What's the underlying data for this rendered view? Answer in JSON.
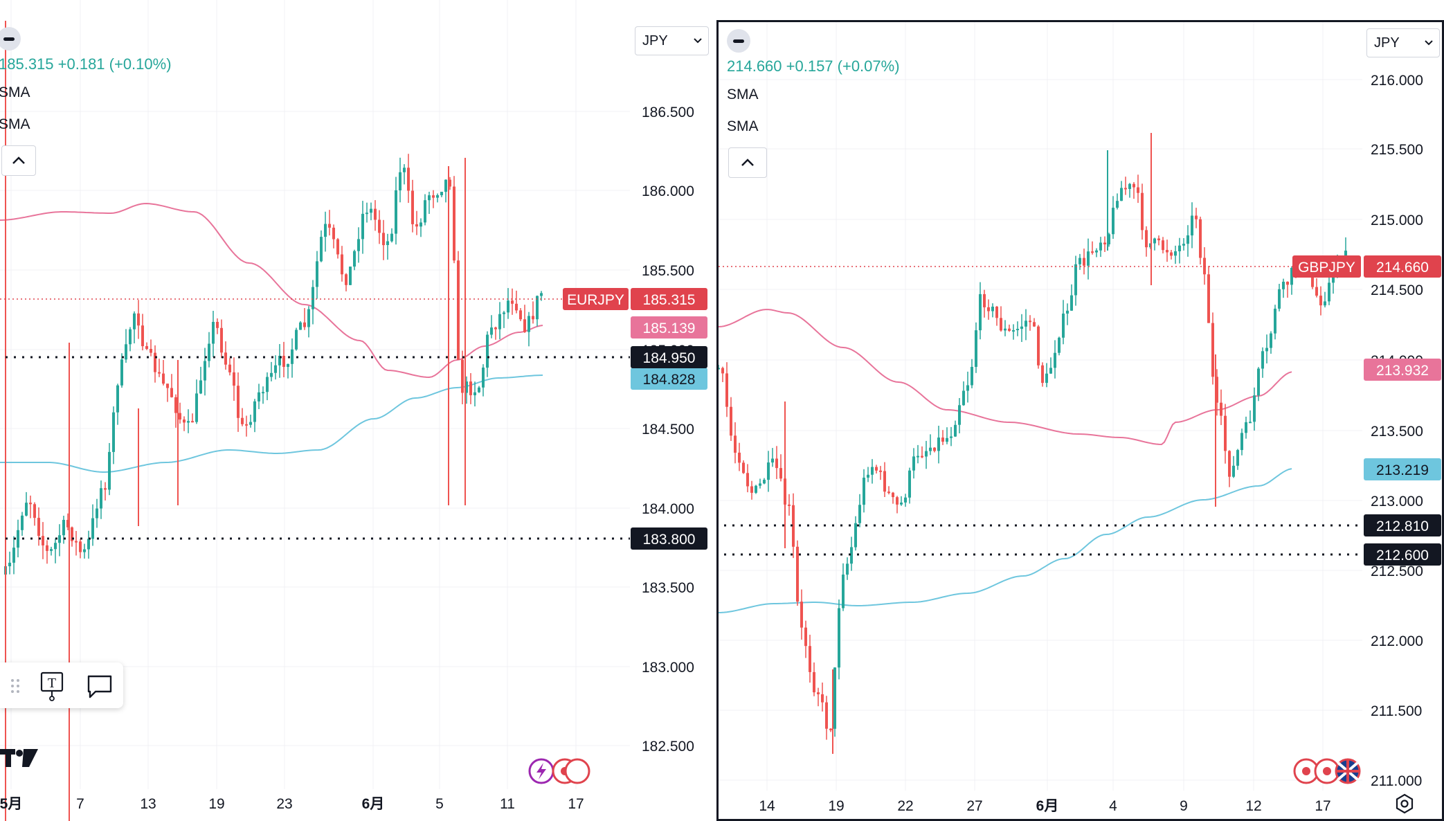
{
  "left": {
    "ohlc": "185.315  +0.181 (+0.10%)",
    "indicators": [
      "SMA",
      "SMA"
    ],
    "currency": "JPY",
    "price_ticks": [
      "186.500",
      "186.000",
      "185.500",
      "185.000",
      "184.500",
      "184.000",
      "183.500",
      "183.000",
      "182.500"
    ],
    "time_ticks": [
      "5月",
      "7",
      "13",
      "19",
      "23",
      "6月",
      "5",
      "11",
      "17"
    ],
    "symbol_tag": "EURJPY",
    "last_price": "185.315",
    "sma1_value": "185.139",
    "sma2_value": "184.828",
    "level_tags": [
      "184.950",
      "183.800"
    ],
    "colors": {
      "up": "#26a69a",
      "down": "#ef5350",
      "sma1": "#e8749a",
      "sma2": "#6ec6de",
      "price_tag": "#e0434d"
    }
  },
  "right": {
    "ohlc": "214.660  +0.157 (+0.07%)",
    "indicators": [
      "SMA",
      "SMA"
    ],
    "currency": "JPY",
    "price_ticks": [
      "216.000",
      "215.500",
      "215.000",
      "214.500",
      "214.000",
      "213.500",
      "213.000",
      "212.500",
      "212.000",
      "211.500",
      "211.000"
    ],
    "time_ticks": [
      "14",
      "19",
      "22",
      "27",
      "6月",
      "4",
      "9",
      "12",
      "17"
    ],
    "symbol_tag": "GBPJPY",
    "last_price": "214.660",
    "sma1_value": "213.932",
    "sma2_value": "213.219",
    "level_tags": [
      "212.810",
      "212.600"
    ]
  },
  "icons": [
    "minus-icon",
    "chevron-up-icon",
    "chevron-down-icon",
    "text-note-icon",
    "comment-icon",
    "drag-handle-icon",
    "tradingview-logo-icon",
    "lightning-event-icon",
    "event-marker-icon",
    "uk-flag-icon",
    "gear-icon"
  ]
}
